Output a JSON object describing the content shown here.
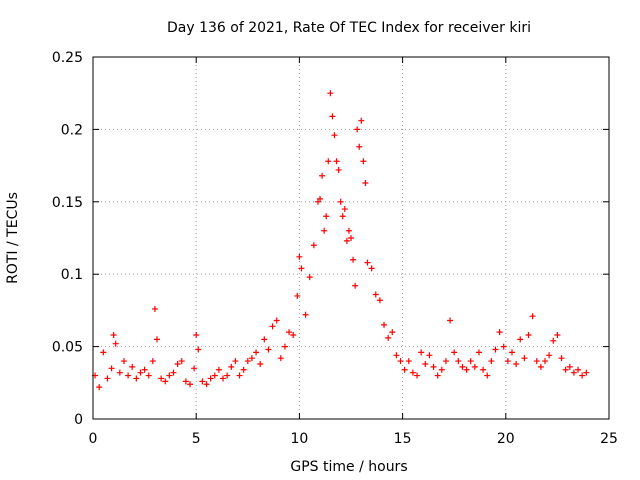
{
  "chart_data": {
    "type": "scatter",
    "title": "Day 136 of 2021, Rate Of TEC Index for receiver kiri",
    "xlabel": "GPS time / hours",
    "ylabel": "ROTI / TECUs",
    "xlim": [
      0,
      25
    ],
    "ylim": [
      0,
      0.25
    ],
    "x_ticks": [
      0,
      5,
      10,
      15,
      20,
      25
    ],
    "x_tick_labels": [
      "0",
      "5",
      "10",
      "15",
      "20",
      "25"
    ],
    "y_ticks": [
      0,
      0.05,
      0.1,
      0.15,
      0.2,
      0.25
    ],
    "y_tick_labels": [
      "0",
      "0.05",
      "0.1",
      "0.15",
      "0.2",
      "0.25"
    ],
    "grid": true,
    "marker": "+",
    "series": [
      {
        "name": "ROTI",
        "color": "#ff0000",
        "x": [
          0.1,
          0.3,
          0.5,
          0.7,
          0.9,
          1.0,
          1.1,
          1.3,
          1.5,
          1.7,
          1.9,
          2.1,
          2.3,
          2.5,
          2.7,
          2.9,
          3.0,
          3.1,
          3.3,
          3.5,
          3.7,
          3.9,
          4.1,
          4.3,
          4.5,
          4.7,
          4.9,
          5.0,
          5.1,
          5.3,
          5.5,
          5.7,
          5.9,
          6.1,
          6.3,
          6.5,
          6.7,
          6.9,
          7.1,
          7.3,
          7.5,
          7.7,
          7.9,
          8.1,
          8.3,
          8.5,
          8.7,
          8.9,
          9.1,
          9.3,
          9.5,
          9.7,
          9.9,
          10.0,
          10.1,
          10.3,
          10.5,
          10.7,
          10.9,
          11.0,
          11.1,
          11.2,
          11.3,
          11.4,
          11.5,
          11.6,
          11.7,
          11.8,
          11.9,
          12.0,
          12.1,
          12.2,
          12.3,
          12.4,
          12.5,
          12.6,
          12.7,
          12.8,
          12.9,
          13.0,
          13.1,
          13.2,
          13.3,
          13.5,
          13.7,
          13.9,
          14.1,
          14.3,
          14.5,
          14.7,
          14.9,
          15.1,
          15.3,
          15.5,
          15.7,
          15.9,
          16.1,
          16.3,
          16.5,
          16.7,
          16.9,
          17.1,
          17.3,
          17.5,
          17.7,
          17.9,
          18.1,
          18.3,
          18.5,
          18.7,
          18.9,
          19.1,
          19.3,
          19.5,
          19.7,
          19.9,
          20.1,
          20.3,
          20.5,
          20.7,
          20.9,
          21.1,
          21.3,
          21.5,
          21.7,
          21.9,
          22.1,
          22.3,
          22.5,
          22.7,
          22.9,
          23.1,
          23.3,
          23.5,
          23.7,
          23.9
        ],
        "y": [
          0.03,
          0.022,
          0.046,
          0.028,
          0.035,
          0.058,
          0.052,
          0.032,
          0.04,
          0.03,
          0.036,
          0.028,
          0.032,
          0.034,
          0.03,
          0.04,
          0.076,
          0.055,
          0.028,
          0.026,
          0.03,
          0.032,
          0.038,
          0.04,
          0.026,
          0.024,
          0.035,
          0.058,
          0.048,
          0.026,
          0.024,
          0.028,
          0.03,
          0.034,
          0.028,
          0.03,
          0.036,
          0.04,
          0.03,
          0.034,
          0.04,
          0.042,
          0.046,
          0.038,
          0.055,
          0.048,
          0.064,
          0.068,
          0.042,
          0.05,
          0.06,
          0.058,
          0.085,
          0.112,
          0.104,
          0.072,
          0.098,
          0.12,
          0.15,
          0.152,
          0.168,
          0.13,
          0.14,
          0.178,
          0.225,
          0.209,
          0.196,
          0.178,
          0.172,
          0.15,
          0.14,
          0.145,
          0.123,
          0.13,
          0.125,
          0.11,
          0.092,
          0.2,
          0.188,
          0.206,
          0.178,
          0.163,
          0.108,
          0.104,
          0.086,
          0.082,
          0.065,
          0.056,
          0.06,
          0.044,
          0.04,
          0.034,
          0.04,
          0.032,
          0.03,
          0.046,
          0.038,
          0.044,
          0.036,
          0.03,
          0.034,
          0.04,
          0.068,
          0.046,
          0.04,
          0.036,
          0.034,
          0.04,
          0.036,
          0.046,
          0.034,
          0.03,
          0.04,
          0.048,
          0.06,
          0.05,
          0.04,
          0.046,
          0.038,
          0.055,
          0.042,
          0.058,
          0.071,
          0.04,
          0.036,
          0.04,
          0.044,
          0.054,
          0.058,
          0.042,
          0.034,
          0.036,
          0.032,
          0.034,
          0.03,
          0.032
        ]
      }
    ]
  }
}
